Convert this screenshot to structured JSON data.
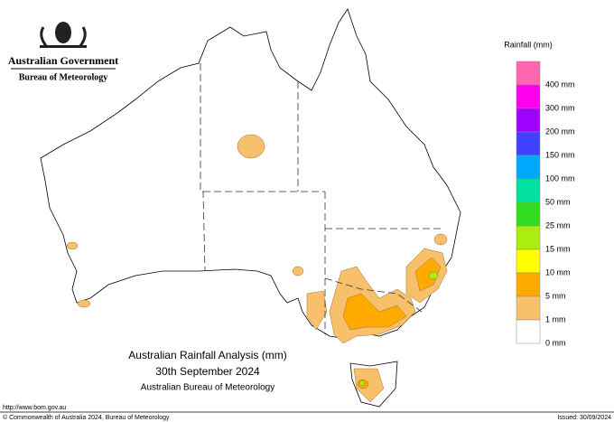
{
  "header": {
    "government": "Australian Government",
    "agency": "Bureau of Meteorology"
  },
  "legend": {
    "title": "Rainfall (mm)",
    "items": [
      {
        "color": "#ff66b0",
        "label": "400 mm"
      },
      {
        "color": "#ff00ee",
        "label": "300 mm"
      },
      {
        "color": "#a000ff",
        "label": "200 mm"
      },
      {
        "color": "#4040ff",
        "label": "150 mm"
      },
      {
        "color": "#00a8ff",
        "label": "100 mm"
      },
      {
        "color": "#00e0a0",
        "label": "50 mm"
      },
      {
        "color": "#33dd22",
        "label": "25 mm"
      },
      {
        "color": "#aaee11",
        "label": "15 mm"
      },
      {
        "color": "#ffff00",
        "label": "10 mm"
      },
      {
        "color": "#ffaa00",
        "label": "5 mm"
      },
      {
        "color": "#f9c06b",
        "label": "1 mm"
      },
      {
        "color": "#ffffff",
        "label": "0 mm"
      }
    ]
  },
  "map": {
    "title": "Australian Rainfall Analysis (mm)",
    "date": "30th September 2024",
    "source": "Australian Bureau of Meteorology"
  },
  "footer": {
    "url": "http://www.bom.gov.au",
    "copyright": "© Commonwealth of Australia 2024, Bureau of Meteorology",
    "issued": "Issued: 30/09/2024"
  }
}
